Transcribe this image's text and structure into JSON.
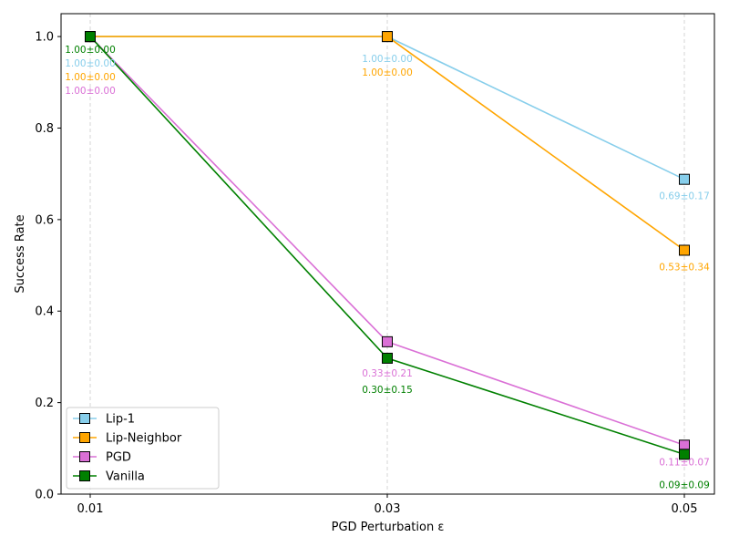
{
  "chart_data": {
    "type": "line",
    "xlabel": "PGD Perturbation ε",
    "ylabel": "Success Rate",
    "x": [
      "0.01",
      "0.03",
      "0.05"
    ],
    "yticks": [
      "0.0",
      "0.2",
      "0.4",
      "0.6",
      "0.8",
      "1.0"
    ],
    "ylim": [
      0,
      1.05
    ],
    "grid": "vertical dashed at x ticks",
    "legend_position": "lower-left",
    "series": [
      {
        "name": "Lip-1",
        "color": "#87ceeb",
        "values": [
          1.0,
          1.0,
          0.688
        ],
        "labels": [
          "1.00±0.00",
          "1.00±0.00",
          "0.69±0.17"
        ]
      },
      {
        "name": "Lip-Neighbor",
        "color": "#ffa500",
        "values": [
          1.0,
          1.0,
          0.533
        ],
        "labels": [
          "1.00±0.00",
          "1.00±0.00",
          "0.53±0.34"
        ]
      },
      {
        "name": "PGD",
        "color": "#da70d6",
        "values": [
          1.0,
          0.333,
          0.107
        ],
        "labels": [
          "1.00±0.00",
          "0.33±0.21",
          "0.11±0.07"
        ]
      },
      {
        "name": "Vanilla",
        "color": "#008000",
        "values": [
          1.0,
          0.297,
          0.087
        ],
        "labels": [
          "1.00±0.00",
          "0.30±0.15",
          "0.09±0.09"
        ]
      }
    ]
  }
}
